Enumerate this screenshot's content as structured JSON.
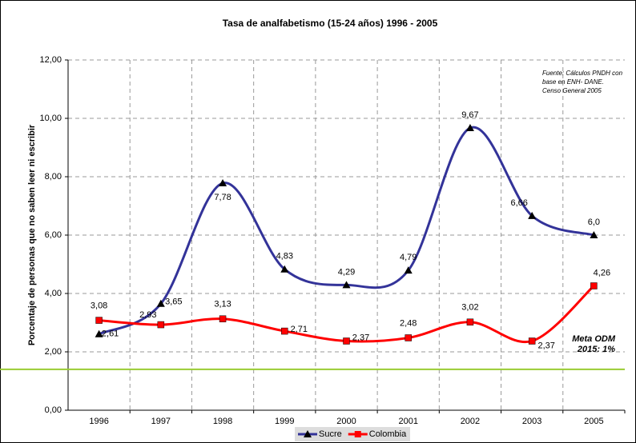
{
  "chart_data": {
    "type": "line",
    "title": "Tasa de analfabetismo (15-24 años) 1996 - 2005",
    "y_label": "Porcentaje de personas que no saben leer ni escribir",
    "categories": [
      "1996",
      "1997",
      "1998",
      "1999",
      "2000",
      "2001",
      "2002",
      "2003",
      "2005"
    ],
    "series": [
      {
        "name": "Sucre",
        "color": "#333399",
        "marker": "triangle",
        "values": [
          2.61,
          3.65,
          7.78,
          4.83,
          4.29,
          4.79,
          9.67,
          6.66,
          6.0
        ],
        "value_labels": [
          "2,61",
          "3,65",
          "7,78",
          "4,83",
          "4,29",
          "4,79",
          "9,67",
          "6,66",
          "6,0"
        ]
      },
      {
        "name": "Colombia",
        "color": "#ff0000",
        "marker": "square",
        "values": [
          3.08,
          2.93,
          3.13,
          2.71,
          2.37,
          2.48,
          3.02,
          2.37,
          4.26
        ],
        "value_labels": [
          "3,08",
          "2,93",
          "3,13",
          "2,71",
          "2,37",
          "2,48",
          "3,02",
          "2,37",
          "4,26"
        ]
      }
    ],
    "ylim": [
      0,
      12
    ],
    "yticks": [
      {
        "value": 0,
        "label": "0,00"
      },
      {
        "value": 2,
        "label": "2,00"
      },
      {
        "value": 4,
        "label": "4,00"
      },
      {
        "value": 6,
        "label": "6,00"
      },
      {
        "value": 8,
        "label": "8,00"
      },
      {
        "value": 10,
        "label": "10,00"
      },
      {
        "value": 12,
        "label": "12,00"
      }
    ],
    "grid": true,
    "target_line": {
      "value": 1.4,
      "color": "#99cc33",
      "label": [
        "Meta ODM",
        "2015: 1%"
      ]
    },
    "source_note": [
      "Fuente: Cálculos PNDH con",
      "base en ENH- DANE.",
      "Censo General 2005"
    ],
    "legend": "bottom"
  }
}
